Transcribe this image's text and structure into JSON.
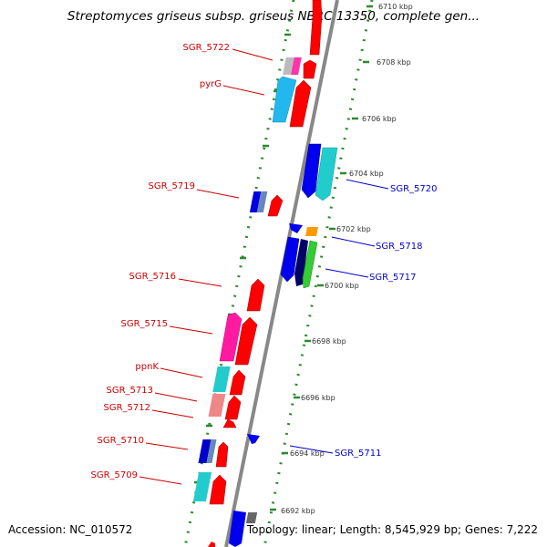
{
  "title": "Streptomyces griseus subsp. griseus NBRC 13350, complete gen...",
  "footer": {
    "accession": "Accession: NC_010572",
    "topology": "Topology: linear; Length: 8,545,929 bp; Genes: 7,222"
  },
  "ruler": [
    "6710 kbp",
    "6708 kbp",
    "6706 kbp",
    "6704 kbp",
    "6702 kbp",
    "6700 kbp",
    "6698 kbp",
    "6696 kbp",
    "6694 kbp",
    "6692 kbp"
  ],
  "labels_left": [
    "SGR_5722",
    "pyrG",
    "SGR_5719",
    "SGR_5716",
    "SGR_5715",
    "ppnK",
    "SGR_5713",
    "SGR_5712",
    "SGR_5710",
    "SGR_5709"
  ],
  "labels_right": [
    "SGR_5720",
    "SGR_5718",
    "SGR_5717",
    "SGR_5711"
  ],
  "colors": {
    "forward_label": "#cc0000",
    "reverse_label": "#0000cc",
    "dots": "#2d8a2d",
    "backbone": "#888888"
  }
}
